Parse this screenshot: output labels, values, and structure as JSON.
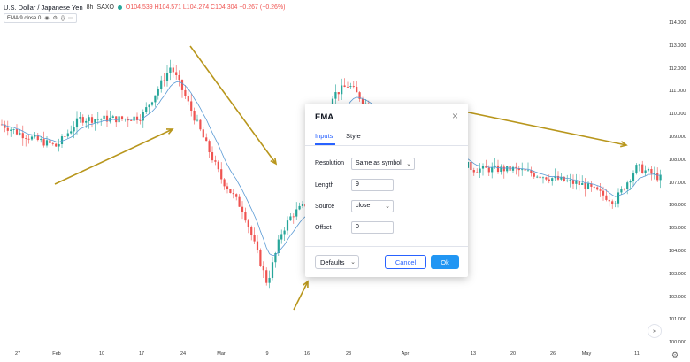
{
  "header": {
    "symbol": "U.S. Dollar / Japanese Yen",
    "interval": "8h",
    "source": "SAXO",
    "ohlc": "O104.539 H104.571 L104.274 C104.304 −0.267 (−0.26%)"
  },
  "indicator_bar": {
    "label": "EMA 9 close 0",
    "icons": [
      "eye-icon",
      "settings-icon",
      "code-icon",
      "more-icon"
    ]
  },
  "price_axis": [
    "114.000",
    "113.000",
    "112.000",
    "111.000",
    "110.000",
    "109.000",
    "108.000",
    "107.000",
    "106.000",
    "105.000",
    "104.000",
    "103.000",
    "102.000",
    "101.000",
    "100.000"
  ],
  "time_axis": [
    "27",
    "Feb",
    "10",
    "17",
    "24",
    "Mar",
    "9",
    "16",
    "23",
    "Apr",
    "13",
    "20",
    "26",
    "May",
    "11"
  ],
  "scroll_button": "»",
  "settings_glyph": "⚙",
  "dialog": {
    "title": "EMA",
    "close": "×",
    "tabs": [
      "Inputs",
      "Style"
    ],
    "rows": [
      {
        "label": "Resolution",
        "value": "Same as symbol"
      },
      {
        "label": "Length",
        "value": "9"
      },
      {
        "label": "Source",
        "value": "close"
      },
      {
        "label": "Offset",
        "value": "0"
      }
    ],
    "defaults": "Defaults",
    "cancel": "Cancel",
    "ok": "Ok"
  },
  "colors": {
    "up": "#26a69a",
    "down": "#ef5350",
    "ema": "#5b9bd5",
    "arrow": "#b8961c",
    "accent": "#2962ff"
  },
  "chart_data": {
    "type": "candlestick",
    "symbol": "USDJPY",
    "interval": "8h",
    "ylim": [
      100.5,
      114.5
    ],
    "close_path": [
      {
        "x": "Jan 24",
        "close": 109.6
      },
      {
        "x": "Jan 27",
        "close": 109.2
      },
      {
        "x": "Jan 31",
        "close": 108.9
      },
      {
        "x": "Feb 3",
        "close": 108.6
      },
      {
        "x": "Feb 6",
        "close": 109.8
      },
      {
        "x": "Feb 10",
        "close": 109.8
      },
      {
        "x": "Feb 13",
        "close": 109.8
      },
      {
        "x": "Feb 17",
        "close": 109.9
      },
      {
        "x": "Feb 19",
        "close": 111.2
      },
      {
        "x": "Feb 20",
        "close": 112.1
      },
      {
        "x": "Feb 24",
        "close": 111.0
      },
      {
        "x": "Feb 27",
        "close": 109.4
      },
      {
        "x": "Mar 2",
        "close": 107.2
      },
      {
        "x": "Mar 5",
        "close": 105.8
      },
      {
        "x": "Mar 9",
        "close": 102.6
      },
      {
        "x": "Mar 11",
        "close": 104.8
      },
      {
        "x": "Mar 13",
        "close": 105.6
      },
      {
        "x": "Mar 16",
        "close": 106.1
      },
      {
        "x": "Mar 19",
        "close": 110.8
      },
      {
        "x": "Mar 23",
        "close": 111.3
      },
      {
        "x": "Mar 26",
        "close": 110.4
      },
      {
        "x": "Apr 13",
        "close": 107.6
      },
      {
        "x": "Apr 20",
        "close": 107.6
      },
      {
        "x": "Apr 26",
        "close": 107.2
      },
      {
        "x": "May 1",
        "close": 106.9
      },
      {
        "x": "May 6",
        "close": 106.2
      },
      {
        "x": "May 11",
        "close": 107.7
      },
      {
        "x": "May 15",
        "close": 107.1
      }
    ],
    "ema_length": 9,
    "annotations": "trend arrows: up (Feb), down (late Feb–Mar 9), up (Mar 9–16), down-right (Mar 26–May)"
  }
}
